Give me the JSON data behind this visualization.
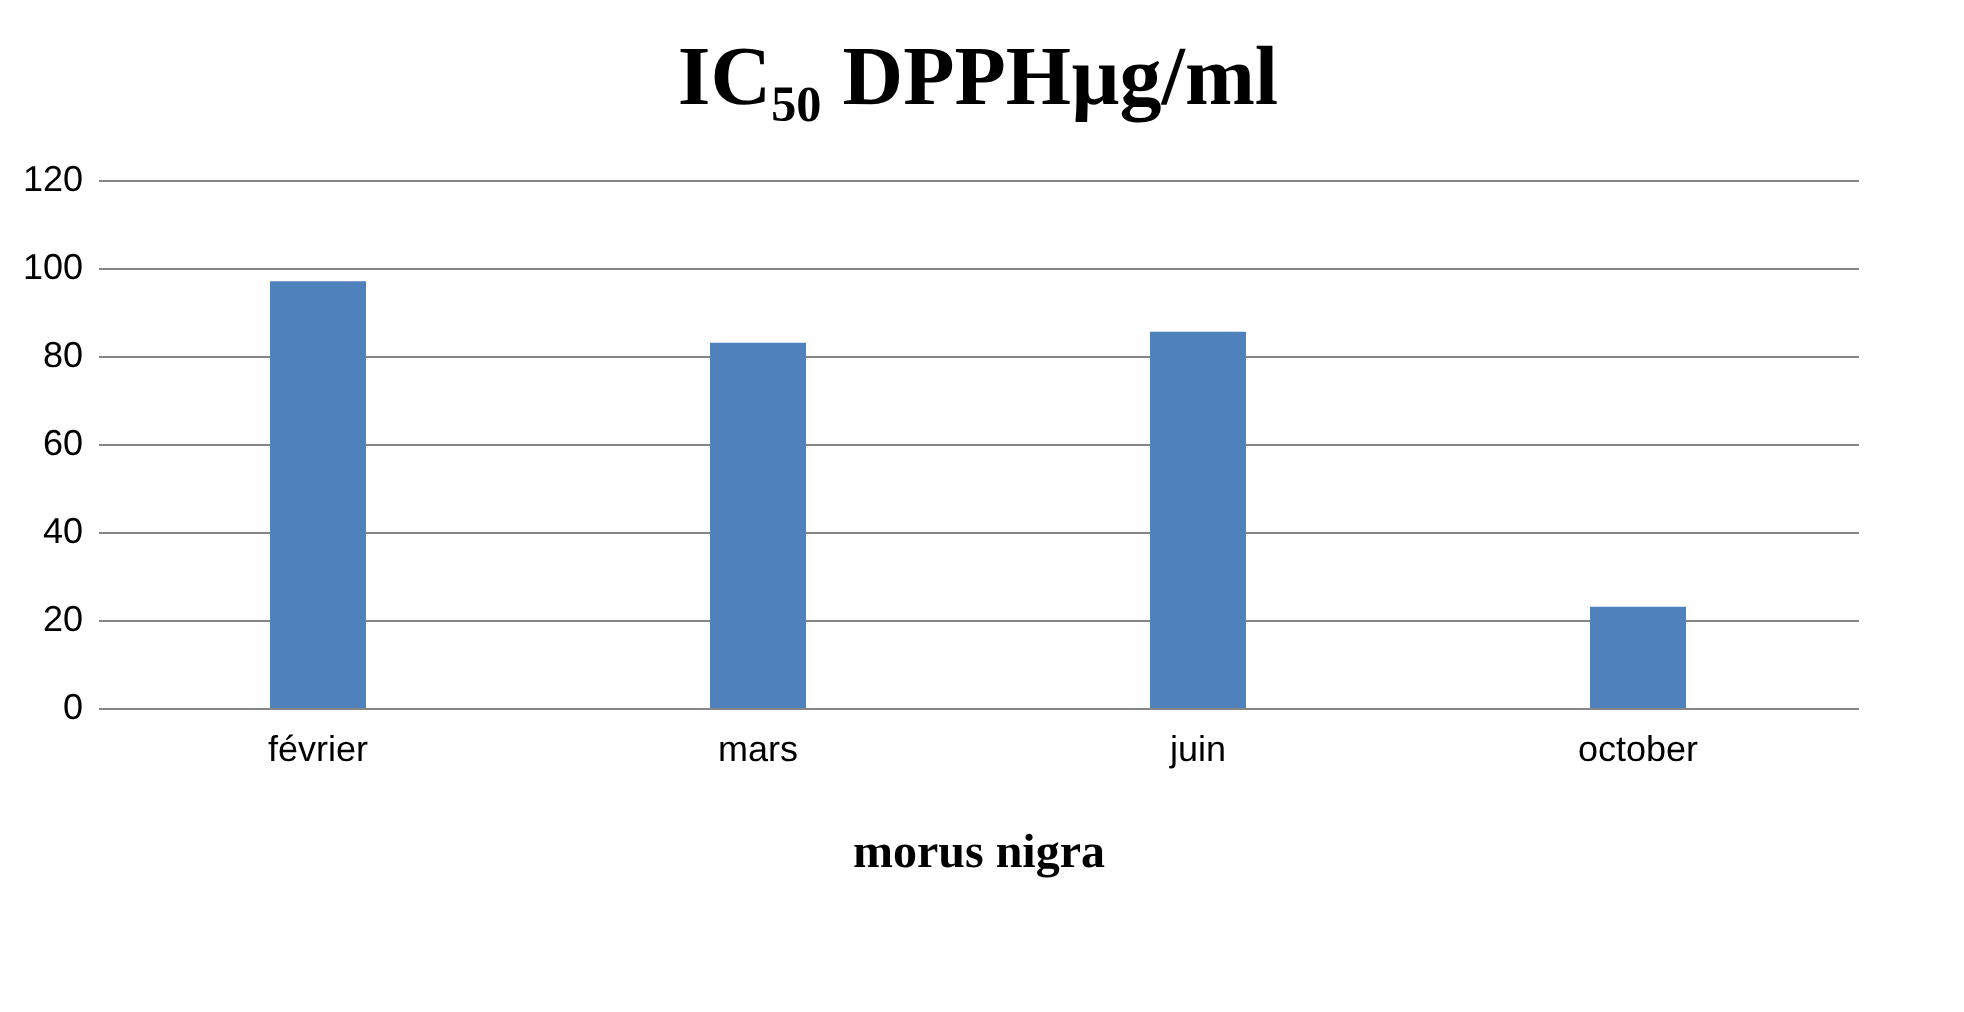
{
  "chart_data": {
    "type": "bar",
    "title": "IC₅₀ DPPHµg/ml",
    "xlabel": "morus nigra",
    "categories": [
      "février",
      "mars",
      "juin",
      "october"
    ],
    "values": [
      97,
      83,
      85.5,
      23
    ],
    "color": "#4f81bd",
    "ylim": [
      0,
      120
    ],
    "yticks": [
      0,
      20,
      40,
      60,
      80,
      100,
      120
    ],
    "grid": "y"
  }
}
